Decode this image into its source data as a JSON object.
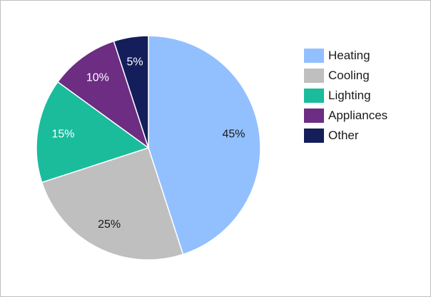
{
  "chart_data": {
    "type": "pie",
    "categories": [
      "Heating",
      "Cooling",
      "Lighting",
      "Appliances",
      "Other"
    ],
    "values": [
      45,
      25,
      15,
      10,
      5
    ],
    "value_labels": [
      "45%",
      "25%",
      "15%",
      "10%",
      "5%"
    ],
    "colors": [
      "#92c0ff",
      "#bfbfbf",
      "#1abc9c",
      "#6c2d83",
      "#141e5a"
    ],
    "label_colors": [
      "#1a1a1a",
      "#1a1a1a",
      "#ffffff",
      "#ffffff",
      "#ffffff"
    ],
    "legend_position": "right",
    "start_angle": "12 o'clock",
    "direction": "clockwise"
  }
}
